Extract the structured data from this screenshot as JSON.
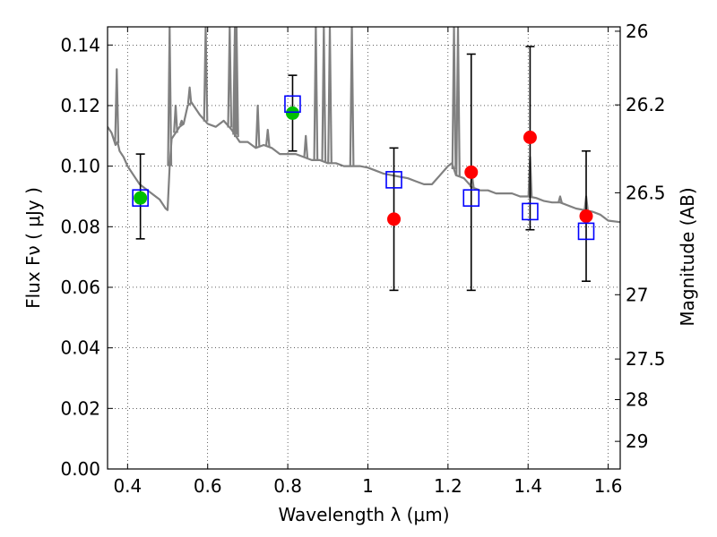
{
  "chart_data": {
    "type": "scatter",
    "xlabel": "Wavelength  λ (μm)",
    "ylabel": "Flux  Fν  ( μJy )",
    "ylabel_right": "Magnitude (AB)",
    "xlim": [
      0.35,
      1.63
    ],
    "ylim": [
      0.0,
      0.146
    ],
    "grid": true,
    "x_ticks": [
      {
        "value": 0.4,
        "label": "0.4"
      },
      {
        "value": 0.6,
        "label": "0.6"
      },
      {
        "value": 0.8,
        "label": "0.8"
      },
      {
        "value": 1.0,
        "label": "1"
      },
      {
        "value": 1.2,
        "label": "1.2"
      },
      {
        "value": 1.4,
        "label": "1.4"
      },
      {
        "value": 1.6,
        "label": "1.6"
      }
    ],
    "y_ticks": [
      {
        "value": 0.0,
        "label": "0.00"
      },
      {
        "value": 0.02,
        "label": "0.02"
      },
      {
        "value": 0.04,
        "label": "0.04"
      },
      {
        "value": 0.06,
        "label": "0.06"
      },
      {
        "value": 0.08,
        "label": "0.08"
      },
      {
        "value": 0.1,
        "label": "0.10"
      },
      {
        "value": 0.12,
        "label": "0.12"
      },
      {
        "value": 0.14,
        "label": "0.14"
      }
    ],
    "mag_ticks": [
      {
        "value": 26,
        "label": "26"
      },
      {
        "value": 26.2,
        "label": "26.2"
      },
      {
        "value": 26.5,
        "label": "26.5"
      },
      {
        "value": 27,
        "label": "27"
      },
      {
        "value": 27.5,
        "label": "27.5"
      },
      {
        "value": 28,
        "label": "28"
      },
      {
        "value": 29,
        "label": "29"
      }
    ],
    "series": [
      {
        "kind": "line",
        "color": "#808080",
        "x": [
          0.35,
          0.36,
          0.37,
          0.375,
          0.38,
          0.39,
          0.4,
          0.41,
          0.42,
          0.43,
          0.44,
          0.45,
          0.46,
          0.47,
          0.48,
          0.49,
          0.495,
          0.5,
          0.505,
          0.51,
          0.515,
          0.52,
          0.53,
          0.54,
          0.55,
          0.56,
          0.58,
          0.6,
          0.62,
          0.64,
          0.66,
          0.68,
          0.7,
          0.72,
          0.74,
          0.76,
          0.78,
          0.8,
          0.82,
          0.84,
          0.86,
          0.88,
          0.9,
          0.92,
          0.94,
          0.96,
          0.98,
          1.0,
          1.02,
          1.04,
          1.06,
          1.08,
          1.1,
          1.12,
          1.14,
          1.16,
          1.18,
          1.2,
          1.21,
          1.22,
          1.23,
          1.24,
          1.26,
          1.28,
          1.3,
          1.32,
          1.34,
          1.36,
          1.38,
          1.4,
          1.42,
          1.44,
          1.46,
          1.48,
          1.5,
          1.52,
          1.54,
          1.56,
          1.58,
          1.6,
          1.63
        ],
        "y": [
          0.113,
          0.111,
          0.107,
          0.108,
          0.105,
          0.103,
          0.1,
          0.098,
          0.096,
          0.094,
          0.093,
          0.092,
          0.091,
          0.09,
          0.089,
          0.087,
          0.086,
          0.0855,
          0.1,
          0.109,
          0.11,
          0.111,
          0.113,
          0.114,
          0.12,
          0.121,
          0.117,
          0.114,
          0.113,
          0.115,
          0.112,
          0.108,
          0.108,
          0.106,
          0.107,
          0.106,
          0.104,
          0.104,
          0.104,
          0.103,
          0.102,
          0.102,
          0.101,
          0.101,
          0.1,
          0.1,
          0.1,
          0.0995,
          0.0985,
          0.0975,
          0.097,
          0.0965,
          0.096,
          0.095,
          0.094,
          0.094,
          0.097,
          0.1,
          0.101,
          0.097,
          0.0965,
          0.096,
          0.093,
          0.092,
          0.092,
          0.091,
          0.091,
          0.091,
          0.09,
          0.09,
          0.0895,
          0.0885,
          0.088,
          0.088,
          0.087,
          0.086,
          0.0855,
          0.085,
          0.084,
          0.082,
          0.0815
        ]
      },
      {
        "kind": "emission_lines",
        "color": "#808080",
        "base_x": [
          0.373,
          0.505,
          0.52,
          0.535,
          0.555,
          0.595,
          0.655,
          0.668,
          0.672,
          0.725,
          0.75,
          0.845,
          0.87,
          0.89,
          0.905,
          0.96,
          1.215,
          1.225,
          1.26,
          1.405,
          1.48,
          1.545
        ],
        "peak_y": [
          0.132,
          0.146,
          0.12,
          0.115,
          0.126,
          0.146,
          0.146,
          0.146,
          0.146,
          0.12,
          0.112,
          0.11,
          0.146,
          0.146,
          0.146,
          0.146,
          0.146,
          0.146,
          0.097,
          0.103,
          0.09,
          0.09
        ]
      },
      {
        "name": "",
        "kind": "errorbar",
        "color": "#000000",
        "x": [
          0.432,
          0.812,
          1.065,
          1.258,
          1.405,
          1.545
        ],
        "y": [
          0.0895,
          0.1175,
          0.0825,
          0.098,
          0.1095,
          0.0835
        ],
        "yerr_low": [
          0.076,
          0.105,
          0.059,
          0.059,
          0.079,
          0.062
        ],
        "yerr_high": [
          0.104,
          0.13,
          0.106,
          0.137,
          0.1395,
          0.105
        ]
      },
      {
        "name": "",
        "kind": "scatter",
        "marker": "circle",
        "x": [
          0.432,
          0.812,
          1.065,
          1.258,
          1.405,
          1.545
        ],
        "y": [
          0.0895,
          0.1175,
          0.0825,
          0.098,
          0.1095,
          0.0835
        ],
        "colors": [
          "#00c000",
          "#00c000",
          "#ff0000",
          "#ff0000",
          "#ff0000",
          "#ff0000"
        ]
      },
      {
        "name": "",
        "kind": "scatter",
        "marker": "square-open",
        "color": "#0000ff",
        "x": [
          0.432,
          0.812,
          1.065,
          1.258,
          1.405,
          1.545
        ],
        "y": [
          0.0895,
          0.1205,
          0.0955,
          0.0895,
          0.085,
          0.0785
        ]
      }
    ]
  }
}
